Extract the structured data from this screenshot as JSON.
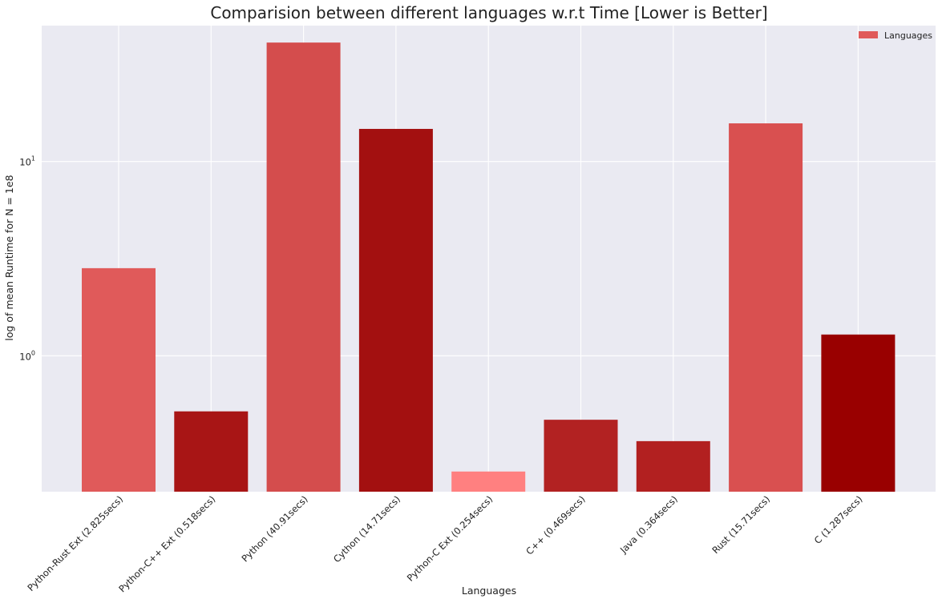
{
  "chart_data": {
    "type": "bar",
    "title": "Comparision between different languages w.r.t Time [Lower is Better]",
    "xlabel": "Languages",
    "ylabel": "log of mean Runtime for N = 1e8",
    "yscale": "log",
    "ylim": [
      0.2,
      50
    ],
    "grid": true,
    "legend": {
      "position": "top-right",
      "entries": [
        "Languages"
      ]
    },
    "categories": [
      "Python-Rust Ext (2.825secs)",
      "Python-C++ Ext (0.518secs)",
      "Python (40.91secs)",
      "Cython (14.71secs)",
      "Python-C Ext (0.254secs)",
      "C++ (0.469secs)",
      "Java (0.364secs)",
      "Rust (15.71secs)",
      "C (1.287secs)"
    ],
    "values": [
      2.825,
      0.518,
      40.91,
      14.71,
      0.254,
      0.469,
      0.364,
      15.71,
      1.287
    ],
    "colors": [
      "#e05a5a",
      "#a81515",
      "#d44d4d",
      "#a31010",
      "#ff8080",
      "#b22222",
      "#b22020",
      "#d95050",
      "#990000"
    ],
    "legend_color": "#e05a5a",
    "ytick_labels": [
      {
        "value": 1,
        "base": "10",
        "exp": "0"
      },
      {
        "value": 10,
        "base": "10",
        "exp": "1"
      }
    ]
  }
}
